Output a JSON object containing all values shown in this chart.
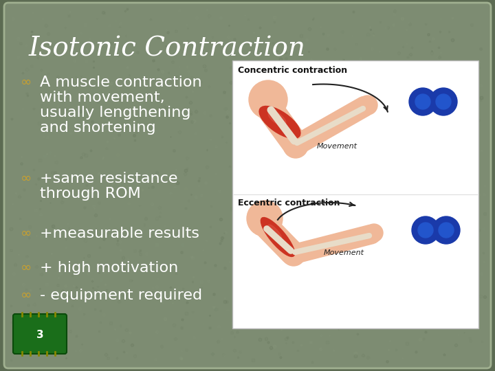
{
  "title": "Isotonic Contraction",
  "title_color": "#FFFFFF",
  "title_font_size": 28,
  "bg_color": "#7d8c72",
  "text_color": "#FFFFFF",
  "bullet_color": "#c8a030",
  "body_font_size": 16,
  "bullet_lines": [
    [
      "∞ A muscle contraction",
      "  with movement,",
      "  usually lengthening",
      "  and shortening"
    ],
    [
      "∞ +same resistance",
      "  through ROM"
    ],
    [
      "∞ +measurable results"
    ],
    [
      "∞ + high motivation"
    ],
    [
      "∞ - equipment required"
    ]
  ],
  "outer_bg": "#5c6b52",
  "border_color": "#a0b090"
}
